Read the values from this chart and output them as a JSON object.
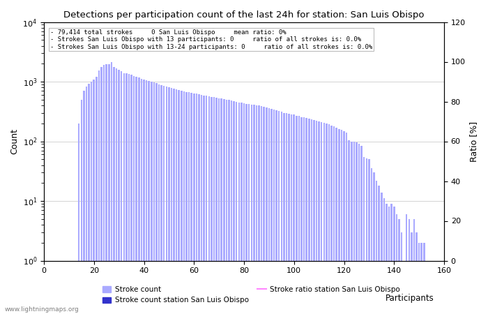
{
  "title": "Detections per participation count of the last 24h for station: San Luis Obispo",
  "xlabel": "Participants",
  "ylabel_left": "Count",
  "ylabel_right": "Ratio [%]",
  "annotation_lines": [
    "79,414 total strokes     0 San Luis Obispo     mean ratio: 0%",
    "Strokes San Luis Obispo with 13 participants: 0     ratio of all strokes is: 0.0%",
    "Strokes San Luis Obispo with 13-24 participants: 0     ratio of all strokes is: 0.0%"
  ],
  "bar_color_light": "#aaaaff",
  "bar_color_dark": "#3333cc",
  "line_color": "#ff88ff",
  "watermark": "www.lightningmaps.org",
  "xlim": [
    0,
    160
  ],
  "ylim_log": [
    1,
    10000
  ],
  "ylim_ratio": [
    0,
    120
  ],
  "yticks_ratio": [
    0,
    20,
    40,
    60,
    80,
    100,
    120
  ],
  "bar_width": 0.7,
  "bar_data": [
    [
      14,
      200
    ],
    [
      15,
      490
    ],
    [
      16,
      700
    ],
    [
      17,
      820
    ],
    [
      18,
      920
    ],
    [
      19,
      1000
    ],
    [
      20,
      1080
    ],
    [
      21,
      1220
    ],
    [
      22,
      1520
    ],
    [
      23,
      1780
    ],
    [
      24,
      1900
    ],
    [
      25,
      1980
    ],
    [
      26,
      1950
    ],
    [
      27,
      2100
    ],
    [
      28,
      1750
    ],
    [
      29,
      1650
    ],
    [
      30,
      1600
    ],
    [
      31,
      1500
    ],
    [
      32,
      1400
    ],
    [
      33,
      1380
    ],
    [
      34,
      1350
    ],
    [
      35,
      1300
    ],
    [
      36,
      1250
    ],
    [
      37,
      1200
    ],
    [
      38,
      1170
    ],
    [
      39,
      1100
    ],
    [
      40,
      1080
    ],
    [
      41,
      1050
    ],
    [
      42,
      1020
    ],
    [
      43,
      1000
    ],
    [
      44,
      970
    ],
    [
      45,
      940
    ],
    [
      46,
      900
    ],
    [
      47,
      870
    ],
    [
      48,
      840
    ],
    [
      49,
      820
    ],
    [
      50,
      800
    ],
    [
      51,
      780
    ],
    [
      52,
      760
    ],
    [
      53,
      740
    ],
    [
      54,
      720
    ],
    [
      55,
      700
    ],
    [
      56,
      680
    ],
    [
      57,
      670
    ],
    [
      58,
      660
    ],
    [
      59,
      650
    ],
    [
      60,
      640
    ],
    [
      61,
      630
    ],
    [
      62,
      610
    ],
    [
      63,
      600
    ],
    [
      64,
      590
    ],
    [
      65,
      580
    ],
    [
      66,
      570
    ],
    [
      67,
      560
    ],
    [
      68,
      550
    ],
    [
      69,
      540
    ],
    [
      70,
      530
    ],
    [
      71,
      520
    ],
    [
      72,
      510
    ],
    [
      73,
      500
    ],
    [
      74,
      490
    ],
    [
      75,
      480
    ],
    [
      76,
      470
    ],
    [
      77,
      460
    ],
    [
      78,
      450
    ],
    [
      79,
      440
    ],
    [
      80,
      430
    ],
    [
      81,
      425
    ],
    [
      82,
      420
    ],
    [
      83,
      415
    ],
    [
      84,
      410
    ],
    [
      85,
      400
    ],
    [
      86,
      395
    ],
    [
      87,
      385
    ],
    [
      88,
      375
    ],
    [
      89,
      370
    ],
    [
      90,
      360
    ],
    [
      91,
      350
    ],
    [
      92,
      340
    ],
    [
      93,
      330
    ],
    [
      94,
      320
    ],
    [
      95,
      310
    ],
    [
      96,
      300
    ],
    [
      97,
      295
    ],
    [
      98,
      290
    ],
    [
      99,
      285
    ],
    [
      100,
      280
    ],
    [
      101,
      270
    ],
    [
      102,
      265
    ],
    [
      103,
      255
    ],
    [
      104,
      250
    ],
    [
      105,
      245
    ],
    [
      106,
      240
    ],
    [
      107,
      235
    ],
    [
      108,
      228
    ],
    [
      109,
      222
    ],
    [
      110,
      215
    ],
    [
      111,
      208
    ],
    [
      112,
      202
    ],
    [
      113,
      198
    ],
    [
      114,
      192
    ],
    [
      115,
      185
    ],
    [
      116,
      178
    ],
    [
      117,
      170
    ],
    [
      118,
      162
    ],
    [
      119,
      155
    ],
    [
      120,
      148
    ],
    [
      121,
      140
    ],
    [
      122,
      105
    ],
    [
      123,
      100
    ],
    [
      124,
      98
    ],
    [
      125,
      95
    ],
    [
      126,
      90
    ],
    [
      127,
      85
    ],
    [
      128,
      55
    ],
    [
      129,
      52
    ],
    [
      130,
      50
    ],
    [
      131,
      35
    ],
    [
      132,
      30
    ],
    [
      133,
      22
    ],
    [
      134,
      18
    ],
    [
      135,
      14
    ],
    [
      136,
      11
    ],
    [
      137,
      9
    ],
    [
      138,
      8
    ],
    [
      139,
      9
    ],
    [
      140,
      8
    ],
    [
      141,
      6
    ],
    [
      142,
      5
    ],
    [
      143,
      3
    ],
    [
      144,
      1
    ],
    [
      145,
      6
    ],
    [
      146,
      5
    ],
    [
      147,
      3
    ],
    [
      148,
      5
    ],
    [
      149,
      3
    ],
    [
      150,
      2
    ],
    [
      151,
      2
    ],
    [
      152,
      2
    ],
    [
      155,
      1
    ]
  ]
}
